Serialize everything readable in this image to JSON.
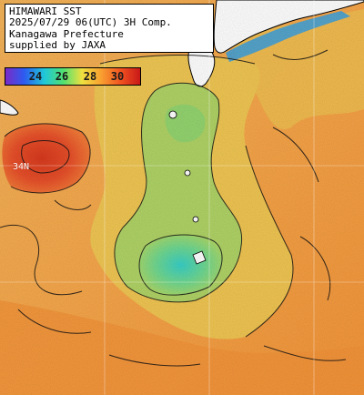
{
  "header": {
    "lines": [
      "HIMAWARI SST",
      "2025/07/29 06(UTC) 3H Comp.",
      "Kanagawa Prefecture",
      "supplied by JAXA"
    ]
  },
  "colorbar": {
    "labels": [
      "24",
      "26",
      "28",
      "30"
    ],
    "colors": [
      "#7a2bc8",
      "#2c5cf0",
      "#20c8d8",
      "#50e070",
      "#f0e040",
      "#f8a030",
      "#f05020",
      "#c81818"
    ]
  },
  "grid_label": "34N",
  "colors": {
    "sea_warm": "#f6a64a",
    "sea_cool": "#e8c850",
    "sea_green": "#9cd468",
    "sea_cyan": "#48d0c0",
    "sea_hot": "#e84e2a",
    "land": "#ffffff"
  }
}
